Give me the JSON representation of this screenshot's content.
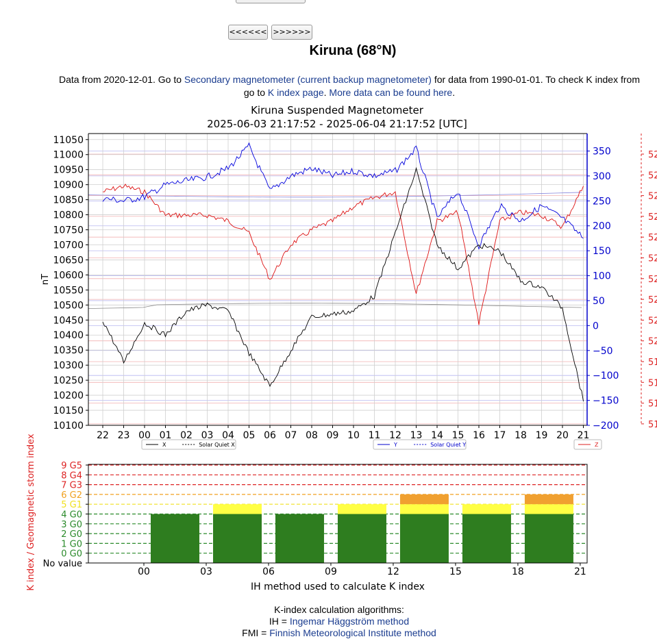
{
  "nav": {
    "prev_label": "<<<<<<",
    "next_label": ">>>>>>"
  },
  "station_title": "Kiruna (68°N)",
  "info": {
    "text1": "Data from 2020-12-01. Go to ",
    "link1": "Secondary magnetometer (current backup magnetometer)",
    "text2": " for data from 1990-01-01. To check K index from",
    "text3": "go to ",
    "link2": "K index page",
    "text4": ". ",
    "link3": "More data can be found here",
    "text5": "."
  },
  "mag_chart": {
    "title": "Kiruna Suspended Magnetometer",
    "subtitle": "2025-06-03 21:17:52 - 2025-06-04 21:17:52 [UTC]",
    "ylabel_left": "nT",
    "x_ticks": [
      "22",
      "23",
      "00",
      "01",
      "02",
      "03",
      "04",
      "05",
      "06",
      "07",
      "08",
      "09",
      "10",
      "11",
      "12",
      "13",
      "14",
      "15",
      "16",
      "17",
      "18",
      "19",
      "20",
      "21"
    ],
    "left_ticks": [
      "11050",
      "11000",
      "10950",
      "10900",
      "10850",
      "10800",
      "10750",
      "10700",
      "10650",
      "10600",
      "10550",
      "10500",
      "10450",
      "10400",
      "10350",
      "10300",
      "10250",
      "10200",
      "10150",
      "10100"
    ],
    "right_ticks": [
      "350",
      "300",
      "250",
      "200",
      "150",
      "100",
      "50",
      "0",
      "−50",
      "−100",
      "−150",
      "−200"
    ],
    "red_ticks": [
      "52",
      "52",
      "52",
      "52",
      "52",
      "52",
      "52",
      "52",
      "52",
      "52",
      "51",
      "51",
      "51",
      "51"
    ],
    "legend_x": [
      "X",
      "Solar Quiet X"
    ],
    "legend_y": [
      "Y",
      "Solar Quiet Y"
    ],
    "legend_z": [
      "Z"
    ],
    "colors": {
      "x": "#000000",
      "y": "#0000dd",
      "z": "#dd1111"
    }
  },
  "chart_data": [
    {
      "type": "line",
      "title": "Kiruna Suspended Magnetometer",
      "subtitle": "2025-06-03 21:17:52 - 2025-06-04 21:17:52 [UTC]",
      "ylabel": "nT",
      "x": [
        22,
        23,
        0,
        1,
        2,
        3,
        4,
        5,
        6,
        7,
        8,
        9,
        10,
        11,
        12,
        13,
        14,
        15,
        16,
        17,
        18,
        19,
        20,
        21
      ],
      "series": [
        {
          "name": "X",
          "axis": "left",
          "ylim": [
            10100,
            11070
          ],
          "values": [
            10450,
            10310,
            10440,
            10400,
            10480,
            10500,
            10480,
            10340,
            10230,
            10350,
            10460,
            10470,
            10480,
            10530,
            10740,
            10950,
            10700,
            10620,
            10700,
            10680,
            10580,
            10560,
            10490,
            10180
          ]
        },
        {
          "name": "Y",
          "axis": "right",
          "ylim": [
            -200,
            385
          ],
          "values": [
            255,
            250,
            258,
            282,
            290,
            298,
            315,
            360,
            270,
            300,
            315,
            300,
            310,
            300,
            310,
            355,
            215,
            270,
            160,
            240,
            210,
            240,
            215,
            175
          ]
        },
        {
          "name": "Z",
          "axis": "far-right",
          "values": [
            0.8,
            0.82,
            0.8,
            0.72,
            0.72,
            0.72,
            0.7,
            0.66,
            0.5,
            0.62,
            0.67,
            0.7,
            0.75,
            0.78,
            0.8,
            0.45,
            0.7,
            0.73,
            0.35,
            0.7,
            0.73,
            0.72,
            0.68,
            0.82
          ]
        }
      ],
      "grid": true
    },
    {
      "type": "bar",
      "xlabel": "IH method used to calculate K index",
      "ylabel": "K index / Geomagnetic storm index",
      "x_ticks": [
        "00",
        "03",
        "06",
        "09",
        "12",
        "15",
        "18",
        "21"
      ],
      "y_ticks": [
        "No value",
        "0 G0",
        "1 G0",
        "2 G0",
        "3 G0",
        "4 G0",
        "5 G1",
        "6 G2",
        "7 G3",
        "8 G4",
        "9 G5"
      ],
      "categories": [
        "00-03",
        "03-06",
        "06-09",
        "09-12",
        "12-15",
        "15-18",
        "18-21"
      ],
      "values": [
        4,
        5,
        4,
        5,
        6,
        5,
        6
      ],
      "ylim": [
        -1,
        9
      ]
    }
  ],
  "algo": {
    "heading": "K-index calculation algorithms:",
    "ih_prefix": "IH = ",
    "ih_link": "Ingemar Häggström method",
    "fmi_prefix": "FMI = ",
    "fmi_link": "Finnish Meteorological Institute method"
  }
}
